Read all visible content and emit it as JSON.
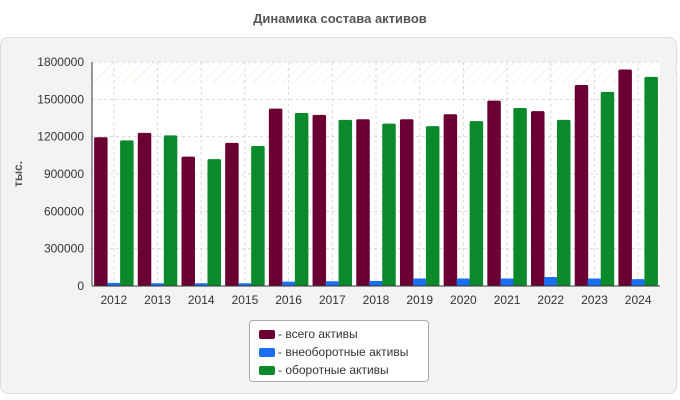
{
  "title": "Динамика состава активов",
  "legend_prefix": "- ",
  "chart_data": {
    "type": "bar",
    "title": "Динамика состава активов",
    "xlabel": "",
    "ylabel": "тыс.",
    "ylim": [
      0,
      1800000
    ],
    "yticks": [
      0,
      300000,
      600000,
      900000,
      1200000,
      1500000,
      1800000
    ],
    "grid": true,
    "legend_position": "bottom-center",
    "categories": [
      "2012",
      "2013",
      "2014",
      "2015",
      "2016",
      "2017",
      "2018",
      "2019",
      "2020",
      "2021",
      "2022",
      "2023",
      "2024"
    ],
    "series": [
      {
        "name": "всего активы",
        "color": "#6b0033",
        "values": [
          1195000,
          1230000,
          1040000,
          1150000,
          1425000,
          1375000,
          1340000,
          1340000,
          1380000,
          1490000,
          1405000,
          1615000,
          1740000
        ]
      },
      {
        "name": "внеоборотные активы",
        "color": "#1a6ff0",
        "values": [
          25000,
          22000,
          22000,
          22000,
          35000,
          38000,
          40000,
          60000,
          60000,
          60000,
          72000,
          60000,
          55000
        ]
      },
      {
        "name": "оборотные активы",
        "color": "#0a8a2a",
        "values": [
          1170000,
          1210000,
          1020000,
          1125000,
          1390000,
          1335000,
          1305000,
          1285000,
          1325000,
          1430000,
          1335000,
          1560000,
          1680000
        ]
      }
    ]
  }
}
